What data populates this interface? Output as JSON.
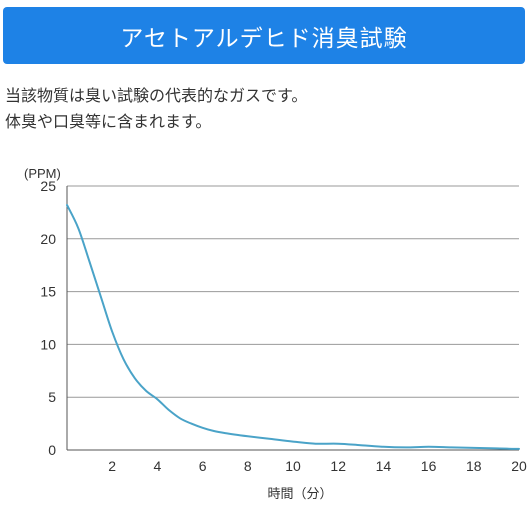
{
  "header": {
    "title": "アセトアルデヒド消臭試験"
  },
  "description": [
    "当該物質は臭い試験の代表的なガスです。",
    "体臭や口臭等に含まれます。"
  ],
  "colors": {
    "banner": "#1e82e6",
    "line": "#4aa3c8",
    "grid": "#999999",
    "text": "#333333"
  },
  "chart_data": {
    "type": "line",
    "title": "",
    "ylabel": "(PPM)",
    "xlabel": "時間（分）",
    "xlim": [
      0,
      20
    ],
    "ylim": [
      0,
      25
    ],
    "xticks": [
      2,
      4,
      6,
      8,
      10,
      12,
      14,
      16,
      18,
      20
    ],
    "yticks": [
      0,
      5,
      10,
      15,
      20,
      25
    ],
    "grid": true,
    "legend": "none",
    "series": [
      {
        "x": [
          0,
          0.5,
          1,
          1.5,
          2,
          2.5,
          3,
          3.5,
          4,
          4.5,
          5,
          5.5,
          6,
          6.5,
          7,
          8,
          9,
          10,
          11,
          12,
          13,
          14,
          15,
          16,
          17,
          18,
          19,
          20
        ],
        "values": [
          23.2,
          21.0,
          17.8,
          14.5,
          11.2,
          8.6,
          6.8,
          5.6,
          4.8,
          3.8,
          3.0,
          2.5,
          2.1,
          1.8,
          1.6,
          1.3,
          1.05,
          0.8,
          0.6,
          0.6,
          0.45,
          0.3,
          0.25,
          0.3,
          0.25,
          0.2,
          0.15,
          0.1
        ]
      }
    ]
  }
}
